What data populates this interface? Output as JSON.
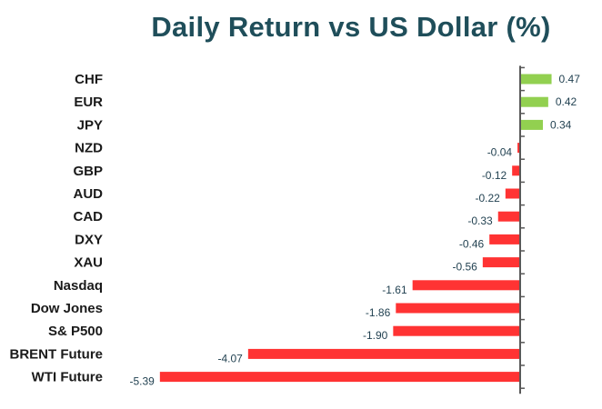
{
  "chart_data": {
    "type": "bar",
    "orientation": "horizontal",
    "title": "Daily Return vs US Dollar (%)",
    "xlabel": "",
    "ylabel": "",
    "categories": [
      "CHF",
      "EUR",
      "JPY",
      "NZD",
      "GBP",
      "AUD",
      "CAD",
      "DXY",
      "XAU",
      "Nasdaq",
      "Dow Jones",
      "S& P500",
      "BRENT Future",
      "WTI Future"
    ],
    "values": [
      0.47,
      0.42,
      0.34,
      -0.04,
      -0.12,
      -0.22,
      -0.33,
      -0.46,
      -0.56,
      -1.61,
      -1.86,
      -1.9,
      -4.07,
      -5.39
    ],
    "value_labels": [
      "0.47",
      "0.42",
      "0.34",
      "-0.04",
      "-0.12",
      "-0.22",
      "-0.33",
      "-0.46",
      "-0.56",
      "-1.61",
      "-1.86",
      "-1.90",
      "-4.07",
      "-5.39"
    ],
    "xlim": [
      -5.8,
      0.6
    ],
    "grid": false,
    "legend": "none",
    "colors": {
      "positive": "#92d050",
      "negative": "#ff3333",
      "axis": "#595959",
      "title": "#1f4e5a"
    }
  }
}
